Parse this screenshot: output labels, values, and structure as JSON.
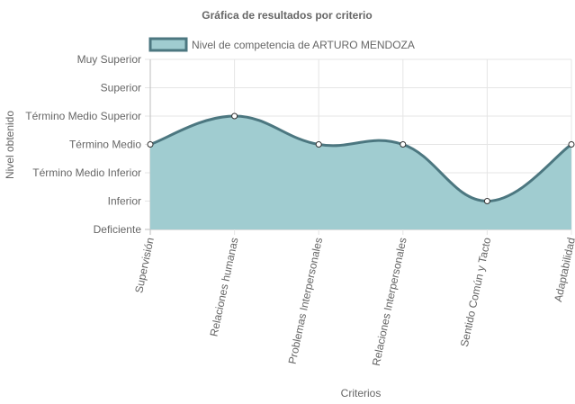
{
  "chart_data": {
    "type": "area",
    "title": "Gráfica de resultados por criterio",
    "xlabel": "Criterios",
    "ylabel": "Nivel obtenido",
    "categories": [
      "Supervisión",
      "Relaciones humanas",
      "Problemas Interpersonales",
      "Relaciones Interpersonales",
      "Sentido Común y Tacto",
      "Adaptabilidad"
    ],
    "y_levels": [
      "Deficiente",
      "Inferior",
      "Término Medio Inferior",
      "Término Medio",
      "Término Medio Superior",
      "Superior",
      "Muy Superior"
    ],
    "series": [
      {
        "name": "Nivel de competencia de ARTURO MENDOZA",
        "values": [
          3,
          4,
          3,
          3,
          1,
          3
        ]
      }
    ],
    "ylim": [
      0,
      6
    ],
    "grid": true,
    "legend_position": "top",
    "colors": {
      "fill": "#a0ccd0",
      "line": "#4c7780",
      "point_fill": "#ffffff",
      "grid": "#e5e5e5",
      "axis": "#bdbdbd",
      "text": "#666666"
    }
  }
}
